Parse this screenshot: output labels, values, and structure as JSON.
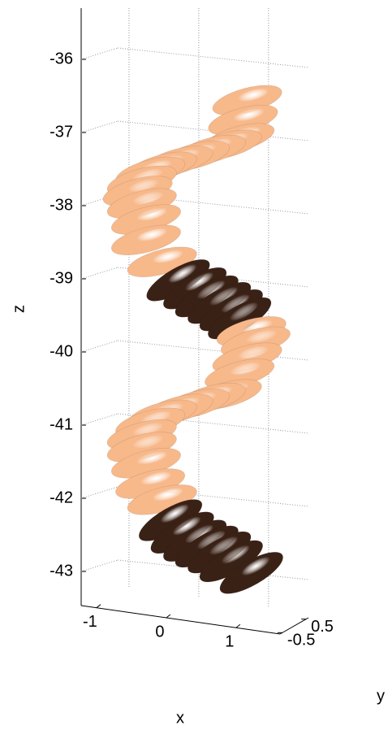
{
  "chart_data": {
    "type": "disks3d",
    "xlabel": "x",
    "ylabel": "y",
    "zlabel": "z",
    "xlim": [
      -1.22,
      1.63
    ],
    "xticks": [
      -1,
      0,
      1
    ],
    "ylim": [
      -0.6,
      0.6
    ],
    "yticks": [
      -0.5,
      0.5
    ],
    "zlim": [
      -43.5,
      -35.3
    ],
    "zticks": [
      -36,
      -37,
      -38,
      -39,
      -40,
      -41,
      -42,
      -43
    ],
    "grid": true,
    "groups": [
      {
        "color": "#f7b88a",
        "tilt": -15,
        "x": [
          1.16,
          1.1,
          1.05,
          0.87,
          0.64,
          0.41,
          0.17,
          -0.06,
          -0.23,
          -0.35,
          -0.41,
          -0.35,
          -0.29,
          -0.29,
          -0.06
        ],
        "z": [
          -36.56,
          -36.83,
          -37.08,
          -37.17,
          -37.24,
          -37.32,
          -37.39,
          -37.47,
          -37.54,
          -37.66,
          -37.8,
          -37.97,
          -38.19,
          -38.47,
          -38.77
        ]
      },
      {
        "color": "#3a2116",
        "tilt": -30,
        "x": [
          0.17,
          0.41,
          0.58,
          0.76,
          0.93,
          1.05
        ],
        "z": [
          -39.02,
          -39.13,
          -39.24,
          -39.33,
          -39.43,
          -39.54
        ]
      },
      {
        "color": "#f7b88a",
        "tilt": -15,
        "x": [
          1.22,
          1.28,
          1.16,
          1.05,
          0.87,
          0.64,
          0.41,
          0.17,
          -0.06,
          -0.23,
          -0.35,
          -0.35,
          -0.29,
          -0.23,
          -0.06
        ],
        "z": [
          -39.72,
          -39.86,
          -40.08,
          -40.3,
          -40.58,
          -40.63,
          -40.71,
          -40.78,
          -40.86,
          -40.97,
          -41.13,
          -41.3,
          -41.52,
          -41.8,
          -42.02
        ]
      },
      {
        "color": "#3a2116",
        "tilt": -30,
        "x": [
          0.06,
          0.23,
          0.41,
          0.58,
          0.76,
          0.93,
          1.22
        ],
        "z": [
          -42.3,
          -42.47,
          -42.58,
          -42.66,
          -42.74,
          -42.86,
          -43.02
        ]
      }
    ]
  }
}
